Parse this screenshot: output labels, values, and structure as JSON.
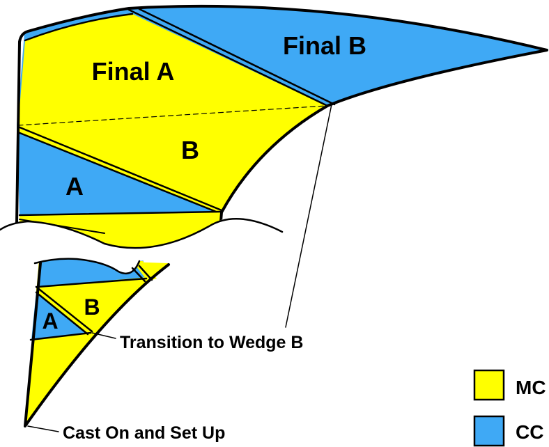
{
  "colors": {
    "mc": "#ffff00",
    "cc": "#3fa9f5",
    "outline": "#000000",
    "background": "#ffffff"
  },
  "top_view": {
    "final_a_label": "Final A",
    "final_b_label": "Final B",
    "wedge_b_label": "B",
    "wedge_a_label": "A"
  },
  "bottom_view": {
    "wedge_a_label": "A",
    "wedge_b_label": "B"
  },
  "callouts": {
    "transition": "Transition to Wedge B",
    "cast_on": "Cast On and Set Up"
  },
  "legend": {
    "items": [
      {
        "swatch_color": "#ffff00",
        "label": "MC"
      },
      {
        "swatch_color": "#3fa9f5",
        "label": "CC"
      }
    ]
  }
}
